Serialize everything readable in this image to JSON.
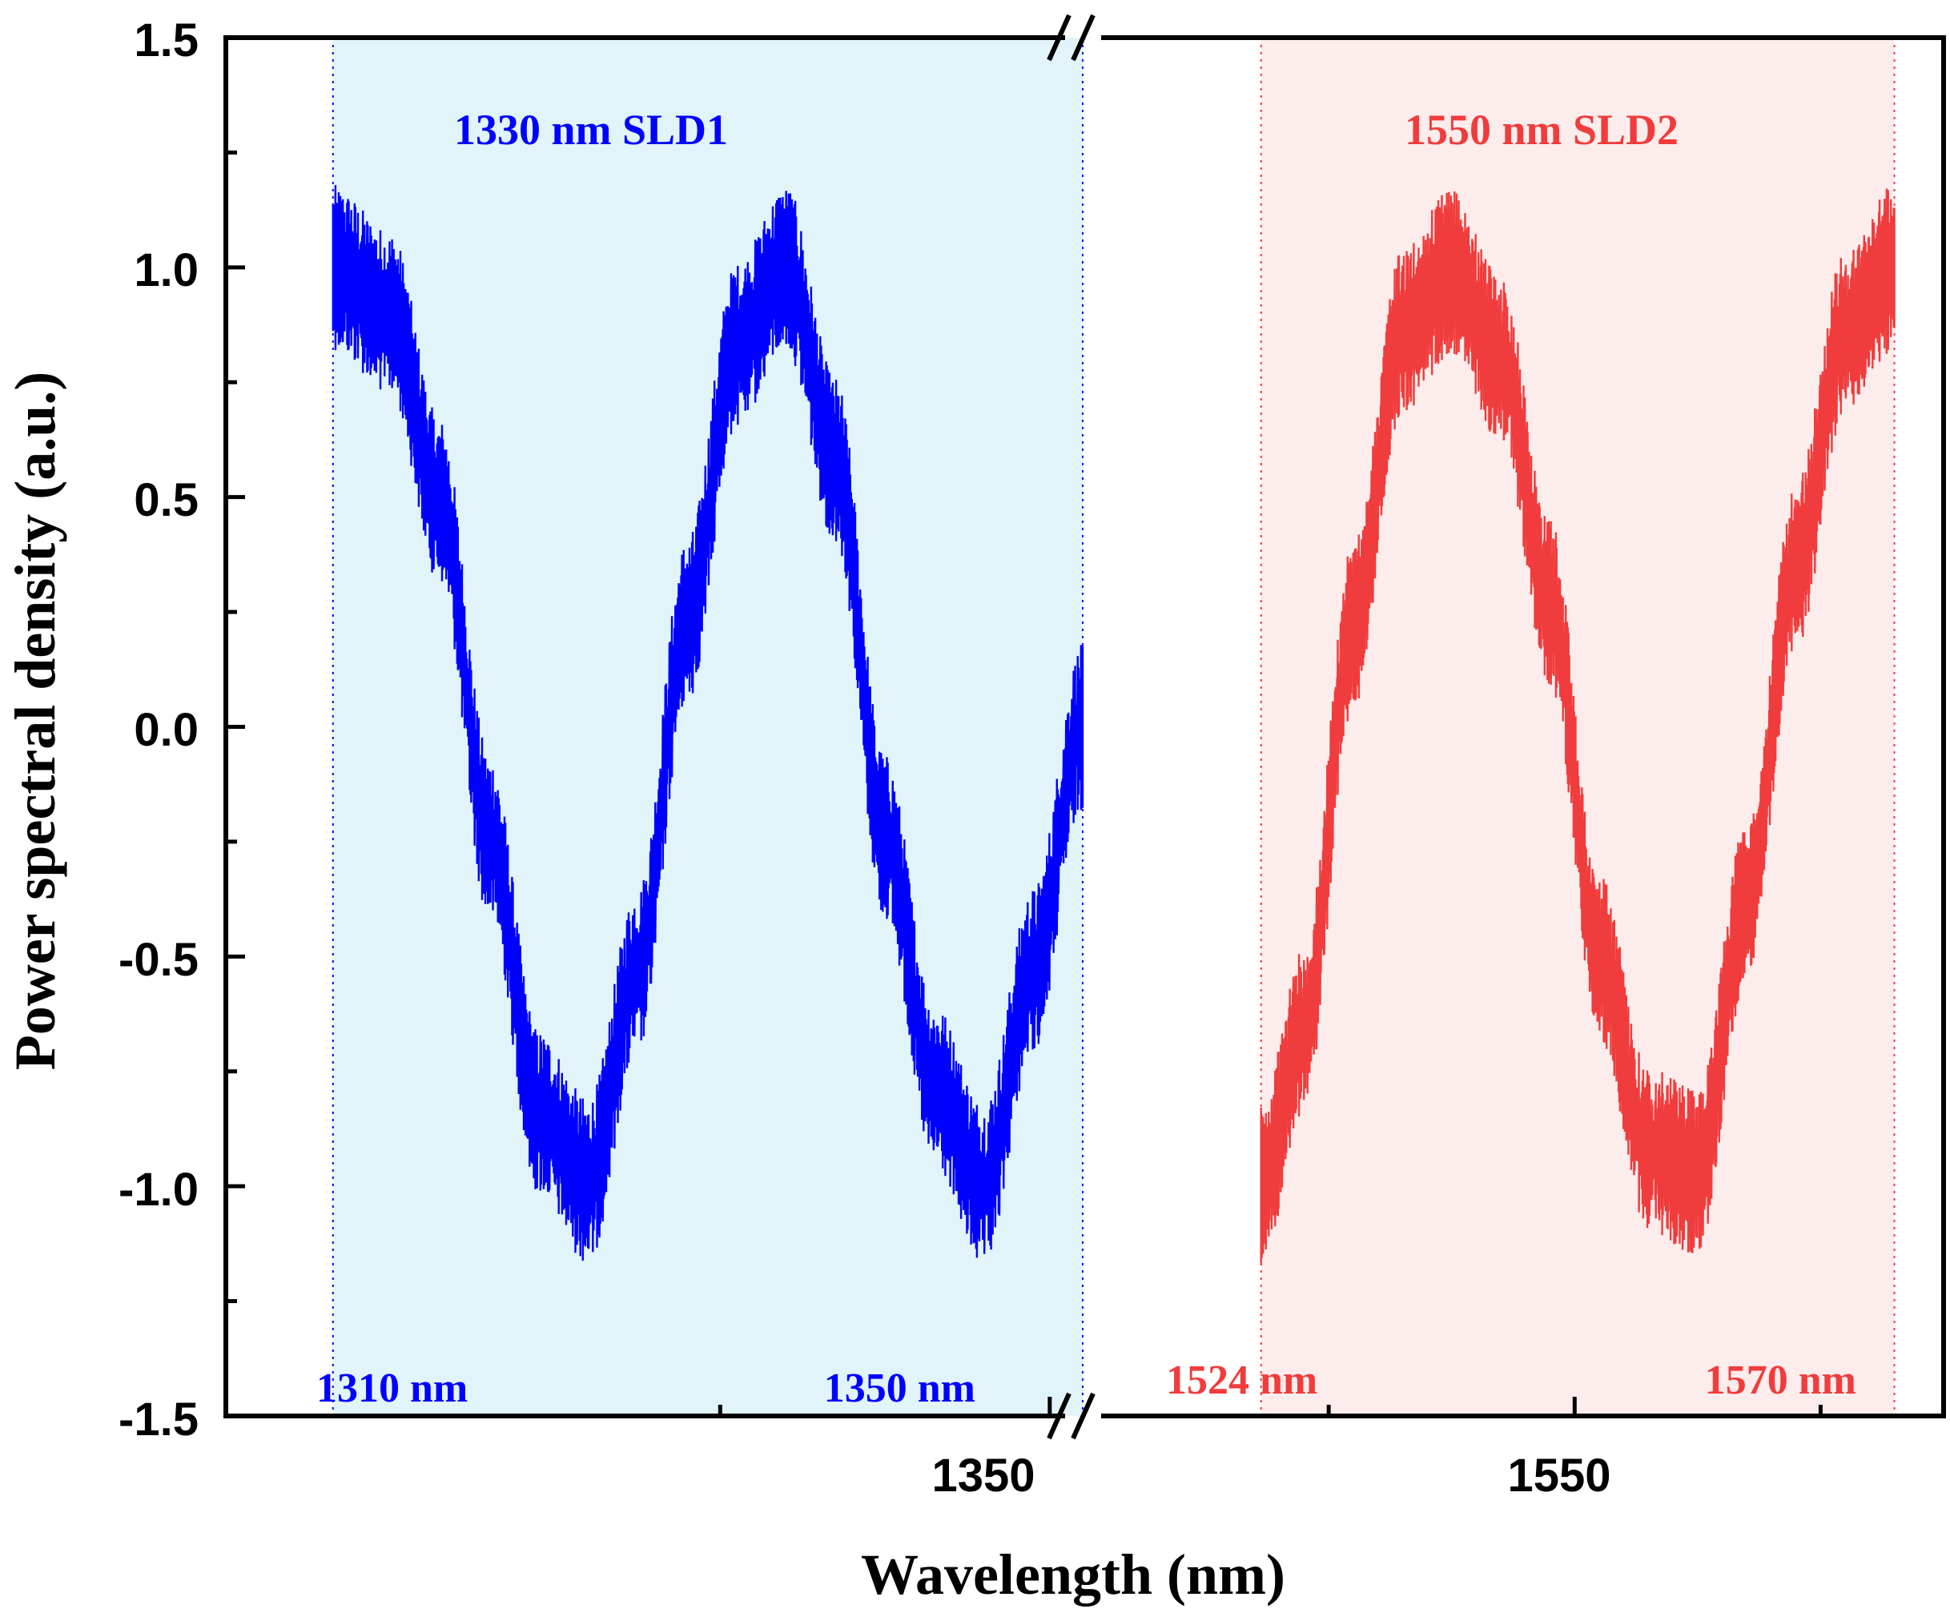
{
  "chart_data": {
    "type": "line",
    "title": "",
    "xlabel": "Wavelength (nm)",
    "ylabel": "Power spectral density (a.u.)",
    "ylim": [
      -1.5,
      1.5
    ],
    "y_ticks": [
      1.5,
      1.0,
      0.5,
      0.0,
      -0.5,
      -1.0,
      -1.5
    ],
    "y_tick_labels": [
      "1.5",
      "1.0",
      "0.5",
      "0.0",
      "-0.5",
      "-1.0",
      "-1.5"
    ],
    "x_axis_break": true,
    "x_segments": [
      {
        "xlim": [
          1300,
          1352
        ],
        "tick_labels": [
          {
            "value": 1350,
            "label": "1350"
          }
        ]
      },
      {
        "xlim": [
          1510,
          1580
        ],
        "tick_labels": [
          {
            "value": 1550,
            "label": "1550"
          }
        ]
      }
    ],
    "grid": false,
    "series": [
      {
        "name": "1330 nm SLD1",
        "label": "1330 nm SLD1",
        "color": "#0000ff",
        "shade_color": "#e1f4fa",
        "range_start_label": "1310 nm",
        "range_end_label": "1350 nm",
        "x": [
          1306.5,
          1310,
          1313,
          1316,
          1319,
          1322,
          1325,
          1328,
          1331,
          1334,
          1337,
          1340,
          1343,
          1346,
          1349,
          1352
        ],
        "values": [
          1.0,
          0.9,
          0.49,
          -0.24,
          -0.84,
          -0.99,
          -0.53,
          0.23,
          0.83,
          1.0,
          0.58,
          -0.24,
          -0.78,
          -1.0,
          -0.53,
          0.0
        ]
      },
      {
        "name": "1550 nm SLD2",
        "label": "1550 nm SLD2",
        "color": "#f03c3c",
        "shade_color": "#fcecec",
        "range_start_label": "1524 nm",
        "range_end_label": "1570 nm",
        "x": [
          1524.5,
          1528,
          1532,
          1536,
          1540,
          1544,
          1548,
          1552,
          1556,
          1560,
          1564,
          1568,
          1572,
          1576
        ],
        "values": [
          -1.0,
          -0.66,
          0.22,
          0.86,
          0.99,
          0.8,
          0.27,
          -0.5,
          -0.92,
          -0.97,
          -0.38,
          0.35,
          0.86,
          1.0
        ]
      }
    ]
  }
}
